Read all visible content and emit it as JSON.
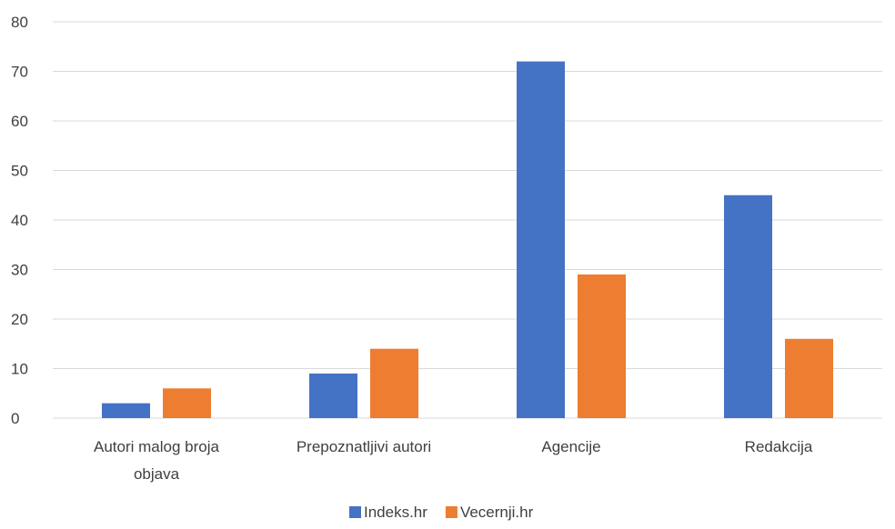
{
  "chart_data": {
    "type": "bar",
    "title": "",
    "xlabel": "",
    "ylabel": "",
    "ylim": [
      0,
      80
    ],
    "yticks": [
      0,
      10,
      20,
      30,
      40,
      50,
      60,
      70,
      80
    ],
    "grid": true,
    "legend_position": "bottom",
    "categories": [
      [
        "Autori malog broja",
        "objava"
      ],
      [
        "Prepoznatljivi autori"
      ],
      [
        "Agencije"
      ],
      [
        "Redakcija"
      ]
    ],
    "series": [
      {
        "name": "Indeks.hr",
        "color": "#4472c4",
        "values": [
          3,
          9,
          72,
          45
        ]
      },
      {
        "name": "Vecernji.hr",
        "color": "#ed7d31",
        "values": [
          6,
          14,
          29,
          16
        ]
      }
    ]
  }
}
